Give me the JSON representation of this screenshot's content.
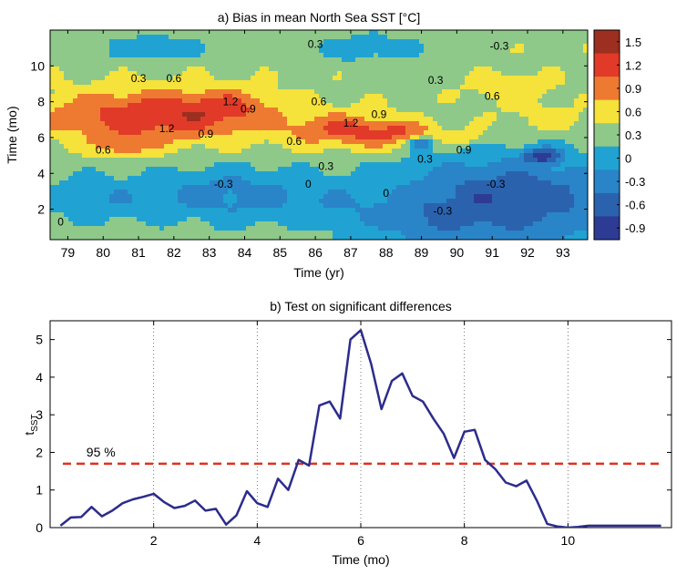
{
  "chart_data": [
    {
      "type": "heatmap",
      "title": "a) Bias in mean North Sea SST [°C]",
      "xlabel": "Time (yr)",
      "ylabel": "Time (mo)",
      "x_ticks": [
        "79",
        "80",
        "81",
        "82",
        "83",
        "84",
        "85",
        "86",
        "87",
        "88",
        "89",
        "90",
        "91",
        "92",
        "93"
      ],
      "y_ticks": [
        "2",
        "4",
        "6",
        "8",
        "10"
      ],
      "xlim": [
        78.5,
        93.7
      ],
      "ylim": [
        0.3,
        12
      ],
      "colorbar": {
        "ticks": [
          "1.5",
          "1.2",
          "0.9",
          "0.6",
          "0.3",
          "0",
          "-0.3",
          "-0.6",
          "-0.9"
        ],
        "colors": [
          "#9c2f20",
          "#e23a28",
          "#ee7a32",
          "#f5e23a",
          "#8ec98a",
          "#20a3d2",
          "#2a84c8",
          "#2b62ad",
          "#2e3b94"
        ]
      },
      "contour_labels": [
        {
          "text": "0.3",
          "x": 86.0,
          "y": 11.2
        },
        {
          "text": "0.3",
          "x": 81.0,
          "y": 9.3
        },
        {
          "text": "0.6",
          "x": 82.0,
          "y": 9.3
        },
        {
          "text": "1.2",
          "x": 83.6,
          "y": 8.0
        },
        {
          "text": "0.9",
          "x": 84.1,
          "y": 7.6
        },
        {
          "text": "0.6",
          "x": 86.1,
          "y": 8.0
        },
        {
          "text": "0.9",
          "x": 87.8,
          "y": 7.3
        },
        {
          "text": "1.2",
          "x": 87.0,
          "y": 6.8
        },
        {
          "text": "1.2",
          "x": 81.8,
          "y": 6.5
        },
        {
          "text": "0.9",
          "x": 82.9,
          "y": 6.2
        },
        {
          "text": "0.6",
          "x": 85.4,
          "y": 5.8
        },
        {
          "text": "0.3",
          "x": 89.4,
          "y": 9.2
        },
        {
          "text": "0.6",
          "x": 91.0,
          "y": 8.3
        },
        {
          "text": "-0.3",
          "x": 91.2,
          "y": 11.1
        },
        {
          "text": "0.6",
          "x": 80.0,
          "y": 5.3
        },
        {
          "text": "0.3",
          "x": 86.3,
          "y": 4.4
        },
        {
          "text": "0.9",
          "x": 90.2,
          "y": 5.3
        },
        {
          "text": "0.3",
          "x": 89.1,
          "y": 4.8
        },
        {
          "text": "0",
          "x": 88.0,
          "y": 2.9
        },
        {
          "text": "-0.3",
          "x": 91.1,
          "y": 3.4
        },
        {
          "text": "0",
          "x": 85.8,
          "y": 3.4
        },
        {
          "text": "-0.3",
          "x": 83.4,
          "y": 3.4
        },
        {
          "text": "-0.3",
          "x": 89.6,
          "y": 1.9
        },
        {
          "text": "0",
          "x": 78.8,
          "y": 1.3
        }
      ]
    },
    {
      "type": "line",
      "title": "b) Test on significant differences",
      "xlabel": "Time (mo)",
      "ylabel_main": "t",
      "ylabel_sub": "SST",
      "xlim": [
        0,
        12
      ],
      "ylim": [
        0,
        5.5
      ],
      "x_ticks": [
        2,
        4,
        6,
        8,
        10
      ],
      "y_ticks": [
        0,
        1,
        2,
        3,
        4,
        5
      ],
      "grid_x": [
        2,
        4,
        6,
        8,
        10
      ],
      "series": [
        {
          "color": "#2c2c8c",
          "x": [
            0.2,
            0.4,
            0.6,
            0.8,
            1.0,
            1.2,
            1.4,
            1.6,
            1.8,
            2.0,
            2.2,
            2.4,
            2.6,
            2.8,
            3.0,
            3.2,
            3.4,
            3.6,
            3.8,
            4.0,
            4.2,
            4.4,
            4.6,
            4.8,
            5.0,
            5.2,
            5.4,
            5.6,
            5.8,
            6.0,
            6.2,
            6.4,
            6.6,
            6.8,
            7.0,
            7.2,
            7.4,
            7.6,
            7.8,
            8.0,
            8.2,
            8.4,
            8.6,
            8.8,
            9.0,
            9.2,
            9.4,
            9.6,
            9.8,
            10.0,
            10.2,
            10.4,
            10.6,
            10.8,
            11.0,
            11.2,
            11.4,
            11.6,
            11.8
          ],
          "y": [
            0.05,
            0.27,
            0.28,
            0.55,
            0.3,
            0.45,
            0.65,
            0.75,
            0.82,
            0.9,
            0.68,
            0.52,
            0.58,
            0.72,
            0.45,
            0.5,
            0.08,
            0.33,
            0.97,
            0.65,
            0.55,
            1.3,
            1.0,
            1.8,
            1.65,
            3.25,
            3.35,
            2.9,
            5.0,
            5.25,
            4.35,
            3.15,
            3.9,
            4.1,
            3.5,
            3.35,
            2.9,
            2.5,
            1.85,
            2.55,
            2.6,
            1.8,
            1.55,
            1.2,
            1.1,
            1.25,
            0.72,
            0.1,
            0.03,
            0.0,
            0.02,
            0.05,
            0.05,
            0.05,
            0.05,
            0.05,
            0.05,
            0.05,
            0.05
          ]
        }
      ],
      "threshold": {
        "value": 1.7,
        "label": "95 %",
        "color": "#e03020"
      }
    }
  ]
}
